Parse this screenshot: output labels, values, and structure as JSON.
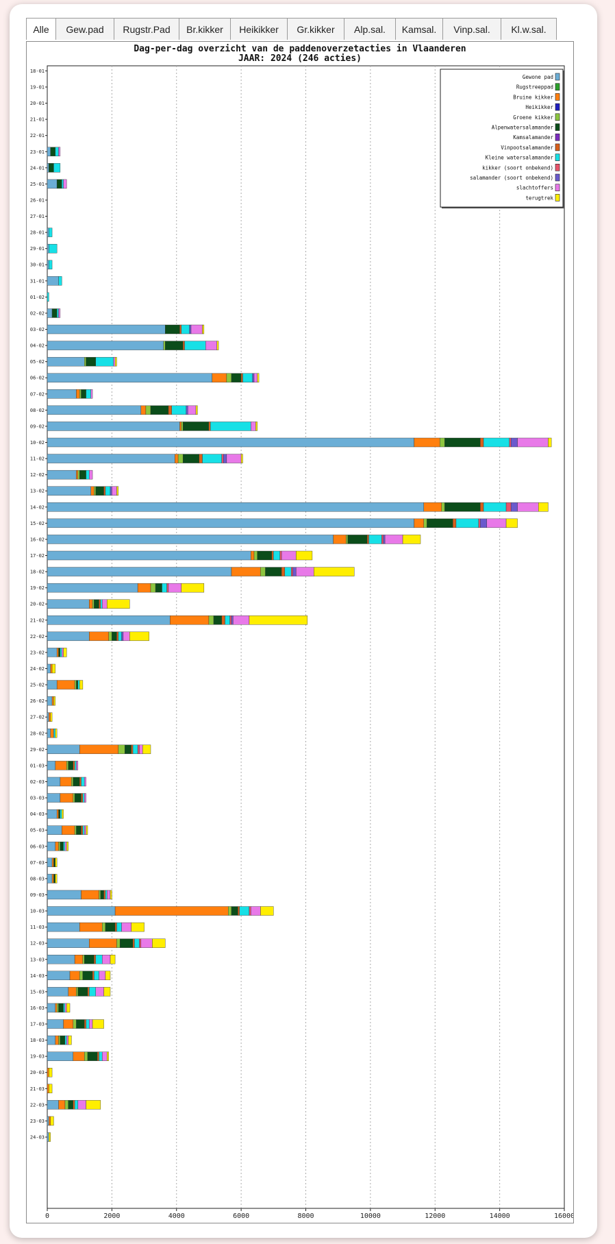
{
  "tabs": [
    "Alle",
    "Gew.pad",
    "Rugstr.Pad",
    "Br.kikker",
    "Heikikker",
    "Gr.kikker",
    "Alp.sal.",
    "Kamsal.",
    "Vinp.sal.",
    "Kl.w.sal."
  ],
  "active_tab": "Alle",
  "chart_data": {
    "type": "bar",
    "orientation": "horizontal",
    "stacked": true,
    "title": "Dag-per-dag overzicht van de paddenoverzetacties in Vlaanderen",
    "subtitle": "JAAR: 2024 (246 acties)",
    "xlim": [
      0,
      16000
    ],
    "x_ticks": [
      "0",
      "2000",
      "4000",
      "6000",
      "8000",
      "10000",
      "12000",
      "14000",
      "16000"
    ],
    "grid": "vertical dotted",
    "legend_position": "top-right",
    "categories": [
      "18-01",
      "19-01",
      "20-01",
      "21-01",
      "22-01",
      "23-01",
      "24-01",
      "25-01",
      "26-01",
      "27-01",
      "28-01",
      "29-01",
      "30-01",
      "31-01",
      "01-02",
      "02-02",
      "03-02",
      "04-02",
      "05-02",
      "06-02",
      "07-02",
      "08-02",
      "09-02",
      "10-02",
      "11-02",
      "12-02",
      "13-02",
      "14-02",
      "15-02",
      "16-02",
      "17-02",
      "18-02",
      "19-02",
      "20-02",
      "21-02",
      "22-02",
      "23-02",
      "24-02",
      "25-02",
      "26-02",
      "27-02",
      "28-02",
      "29-02",
      "01-03",
      "02-03",
      "03-03",
      "04-03",
      "05-03",
      "06-03",
      "07-03",
      "08-03",
      "09-03",
      "10-03",
      "11-03",
      "12-03",
      "13-03",
      "14-03",
      "15-03",
      "16-03",
      "17-03",
      "18-03",
      "19-03",
      "20-03",
      "21-03",
      "22-03",
      "23-03",
      "24-03"
    ],
    "series": [
      {
        "name": "Gewone pad",
        "color": "#6baed6",
        "values": [
          0,
          0,
          0,
          0,
          0,
          100,
          50,
          300,
          0,
          0,
          50,
          50,
          50,
          350,
          0,
          150,
          3650,
          3600,
          1150,
          5100,
          900,
          2900,
          4100,
          11350,
          3950,
          900,
          1350,
          11650,
          11350,
          8850,
          6300,
          5700,
          2800,
          1300,
          3800,
          1300,
          300,
          100,
          300,
          150,
          50,
          100,
          1000,
          250,
          400,
          400,
          300,
          450,
          250,
          150,
          150,
          1050,
          2100,
          1000,
          1300,
          850,
          700,
          650,
          250,
          500,
          250,
          800,
          0,
          0,
          350,
          50,
          50
        ]
      },
      {
        "name": "Rugstreeppad",
        "color": "#2ca02c",
        "values": [
          0,
          0,
          0,
          0,
          0,
          0,
          0,
          0,
          0,
          0,
          0,
          0,
          0,
          0,
          0,
          0,
          0,
          0,
          0,
          0,
          0,
          0,
          0,
          0,
          0,
          0,
          0,
          0,
          0,
          0,
          0,
          0,
          0,
          0,
          0,
          0,
          0,
          0,
          0,
          0,
          0,
          0,
          0,
          0,
          0,
          0,
          0,
          0,
          0,
          0,
          0,
          0,
          0,
          0,
          0,
          0,
          0,
          0,
          0,
          0,
          0,
          0,
          0,
          0,
          0,
          0,
          0
        ]
      },
      {
        "name": "Bruine kikker",
        "color": "#ff7f0e",
        "values": [
          0,
          0,
          0,
          0,
          0,
          0,
          0,
          0,
          0,
          0,
          0,
          0,
          0,
          0,
          0,
          0,
          0,
          0,
          0,
          450,
          100,
          150,
          50,
          800,
          100,
          50,
          100,
          550,
          300,
          400,
          100,
          900,
          400,
          100,
          1200,
          600,
          50,
          50,
          550,
          50,
          50,
          100,
          1200,
          350,
          350,
          400,
          50,
          400,
          100,
          50,
          50,
          550,
          3500,
          700,
          850,
          250,
          300,
          250,
          50,
          300,
          100,
          350,
          50,
          50,
          200,
          50,
          0
        ]
      },
      {
        "name": "Heikikker",
        "color": "#1f1fbf",
        "values": [
          0,
          0,
          0,
          0,
          0,
          0,
          0,
          0,
          0,
          0,
          0,
          0,
          0,
          0,
          0,
          0,
          0,
          0,
          0,
          0,
          0,
          0,
          0,
          0,
          0,
          0,
          0,
          0,
          0,
          0,
          0,
          0,
          0,
          0,
          0,
          0,
          0,
          0,
          0,
          0,
          0,
          0,
          0,
          0,
          0,
          0,
          0,
          0,
          0,
          0,
          0,
          0,
          0,
          0,
          0,
          0,
          0,
          0,
          0,
          0,
          0,
          0,
          0,
          0,
          0,
          0,
          0
        ]
      },
      {
        "name": "Groene kikker",
        "color": "#8cc63f",
        "values": [
          0,
          0,
          0,
          0,
          0,
          0,
          0,
          0,
          0,
          0,
          0,
          0,
          0,
          0,
          0,
          0,
          0,
          50,
          50,
          150,
          50,
          150,
          50,
          150,
          150,
          50,
          50,
          100,
          100,
          50,
          100,
          150,
          150,
          50,
          150,
          100,
          0,
          0,
          50,
          0,
          0,
          0,
          200,
          50,
          50,
          50,
          0,
          50,
          50,
          0,
          0,
          50,
          100,
          100,
          100,
          50,
          100,
          50,
          50,
          100,
          50,
          100,
          0,
          0,
          100,
          0,
          0
        ]
      },
      {
        "name": "Alpenwatersalamander",
        "color": "#0b4d1a",
        "values": [
          0,
          0,
          0,
          0,
          0,
          150,
          150,
          150,
          0,
          0,
          0,
          0,
          0,
          0,
          0,
          150,
          450,
          550,
          300,
          300,
          150,
          550,
          800,
          1100,
          500,
          200,
          250,
          1100,
          800,
          600,
          450,
          500,
          200,
          150,
          250,
          150,
          50,
          0,
          50,
          0,
          0,
          0,
          200,
          150,
          200,
          200,
          50,
          150,
          100,
          50,
          50,
          100,
          200,
          300,
          400,
          300,
          300,
          300,
          150,
          250,
          150,
          300,
          0,
          0,
          150,
          0,
          0
        ]
      },
      {
        "name": "Kamsalamander",
        "color": "#7b2cbf",
        "values": [
          0,
          0,
          0,
          0,
          0,
          0,
          0,
          0,
          0,
          0,
          0,
          0,
          0,
          0,
          0,
          0,
          0,
          0,
          0,
          0,
          0,
          0,
          0,
          0,
          0,
          0,
          0,
          0,
          0,
          0,
          0,
          0,
          0,
          0,
          0,
          0,
          0,
          0,
          0,
          0,
          0,
          0,
          0,
          0,
          0,
          0,
          0,
          0,
          0,
          0,
          0,
          0,
          0,
          0,
          0,
          0,
          0,
          0,
          0,
          0,
          0,
          0,
          0,
          0,
          0,
          0,
          0
        ]
      },
      {
        "name": "Vinpootsalamander",
        "color": "#d95f1a",
        "values": [
          0,
          0,
          0,
          0,
          0,
          0,
          0,
          0,
          0,
          0,
          0,
          0,
          0,
          0,
          0,
          0,
          50,
          50,
          0,
          50,
          0,
          100,
          50,
          100,
          100,
          0,
          50,
          100,
          100,
          50,
          50,
          100,
          0,
          50,
          100,
          50,
          0,
          0,
          0,
          0,
          0,
          0,
          50,
          50,
          50,
          50,
          0,
          50,
          0,
          0,
          0,
          50,
          50,
          50,
          50,
          50,
          50,
          50,
          0,
          50,
          0,
          50,
          0,
          0,
          50,
          0,
          0
        ]
      },
      {
        "name": "Kleine watersalamander",
        "color": "#17e0e6",
        "values": [
          0,
          0,
          0,
          0,
          0,
          100,
          200,
          50,
          0,
          0,
          100,
          250,
          100,
          100,
          50,
          50,
          250,
          650,
          550,
          300,
          150,
          450,
          1250,
          800,
          600,
          100,
          150,
          700,
          700,
          400,
          200,
          200,
          150,
          50,
          150,
          100,
          50,
          0,
          50,
          0,
          0,
          50,
          150,
          50,
          100,
          50,
          50,
          50,
          50,
          0,
          0,
          50,
          300,
          150,
          150,
          200,
          150,
          200,
          50,
          100,
          50,
          100,
          0,
          0,
          100,
          0,
          0
        ]
      },
      {
        "name": "kikker (soort onbekend)",
        "color": "#e8536a",
        "values": [
          0,
          0,
          0,
          0,
          0,
          0,
          0,
          0,
          0,
          0,
          0,
          0,
          0,
          0,
          0,
          0,
          0,
          0,
          0,
          0,
          0,
          0,
          0,
          50,
          50,
          0,
          0,
          150,
          50,
          50,
          50,
          50,
          50,
          0,
          50,
          0,
          0,
          0,
          0,
          0,
          0,
          0,
          50,
          0,
          0,
          0,
          0,
          0,
          0,
          0,
          0,
          0,
          50,
          0,
          50,
          0,
          0,
          0,
          0,
          0,
          0,
          0,
          0,
          0,
          0,
          0,
          0
        ]
      },
      {
        "name": "salamander (soort onbekend)",
        "color": "#6a5acd",
        "values": [
          0,
          0,
          0,
          0,
          0,
          0,
          0,
          0,
          0,
          0,
          0,
          0,
          0,
          0,
          0,
          0,
          50,
          0,
          0,
          50,
          0,
          50,
          0,
          200,
          100,
          0,
          50,
          200,
          200,
          50,
          0,
          100,
          0,
          0,
          50,
          50,
          0,
          0,
          0,
          0,
          0,
          0,
          0,
          0,
          0,
          0,
          0,
          0,
          0,
          0,
          0,
          0,
          0,
          0,
          0,
          0,
          0,
          0,
          0,
          0,
          0,
          0,
          0,
          0,
          0,
          0,
          0
        ]
      },
      {
        "name": "slachtoffers",
        "color": "#e879e8",
        "values": [
          0,
          0,
          0,
          0,
          0,
          50,
          0,
          100,
          0,
          0,
          0,
          0,
          0,
          0,
          0,
          50,
          350,
          350,
          50,
          100,
          50,
          250,
          150,
          950,
          450,
          100,
          150,
          650,
          600,
          550,
          450,
          550,
          400,
          150,
          500,
          200,
          50,
          0,
          0,
          0,
          0,
          0,
          100,
          50,
          50,
          50,
          0,
          50,
          50,
          0,
          0,
          100,
          300,
          300,
          350,
          250,
          200,
          250,
          50,
          100,
          50,
          150,
          0,
          0,
          250,
          0,
          0
        ]
      },
      {
        "name": "terugtrek",
        "color": "#ffee00",
        "values": [
          0,
          0,
          0,
          0,
          0,
          0,
          0,
          0,
          0,
          0,
          0,
          0,
          0,
          0,
          0,
          0,
          50,
          50,
          50,
          50,
          0,
          50,
          50,
          100,
          50,
          0,
          50,
          300,
          350,
          550,
          500,
          1250,
          700,
          700,
          1800,
          600,
          100,
          100,
          100,
          50,
          50,
          50,
          250,
          0,
          0,
          0,
          50,
          50,
          50,
          50,
          50,
          50,
          400,
          400,
          400,
          150,
          150,
          200,
          100,
          350,
          100,
          50,
          100,
          100,
          450,
          100,
          50
        ]
      }
    ]
  }
}
